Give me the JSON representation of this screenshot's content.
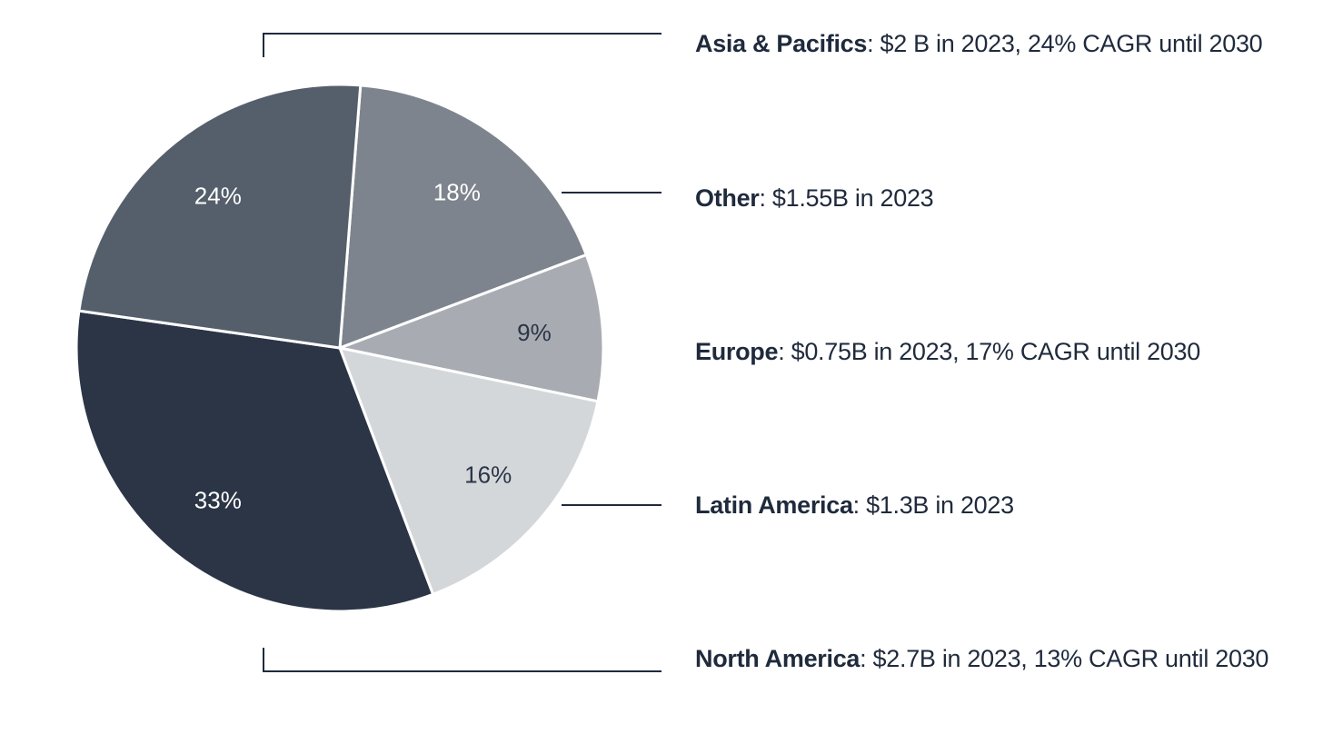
{
  "chart_data": {
    "type": "pie",
    "slices": [
      {
        "label": "18%",
        "value": 18,
        "color": "#7e848e",
        "label_color": "#ffffff"
      },
      {
        "label": "9%",
        "value": 9,
        "color": "#a8acb2",
        "label_color": "#2b3546"
      },
      {
        "label": "16%",
        "value": 16,
        "color": "#d4d7da",
        "label_color": "#2b3546"
      },
      {
        "label": "33%",
        "value": 33,
        "color": "#2b3546",
        "label_color": "#ffffff"
      },
      {
        "label": "24%",
        "value": 24,
        "color": "#555f6b",
        "label_color": "#ffffff"
      }
    ],
    "legend": [
      {
        "region": "Asia & Pacifics",
        "detail": ": $2 B in 2023, 24% CAGR until 2030"
      },
      {
        "region": "Other",
        "detail": ": $1.55B in 2023"
      },
      {
        "region": "Europe",
        "detail": ": $0.75B in 2023, 17% CAGR until 2030"
      },
      {
        "region": "Latin America",
        "detail": ": $1.3B in 2023"
      },
      {
        "region": "North America",
        "detail": ": $2.7B in 2023, 13% CAGR until 2030"
      }
    ]
  },
  "colors": {
    "text": "#1f2a3c",
    "leader_line": "#1f2a3c",
    "slice_border": "#ffffff"
  }
}
